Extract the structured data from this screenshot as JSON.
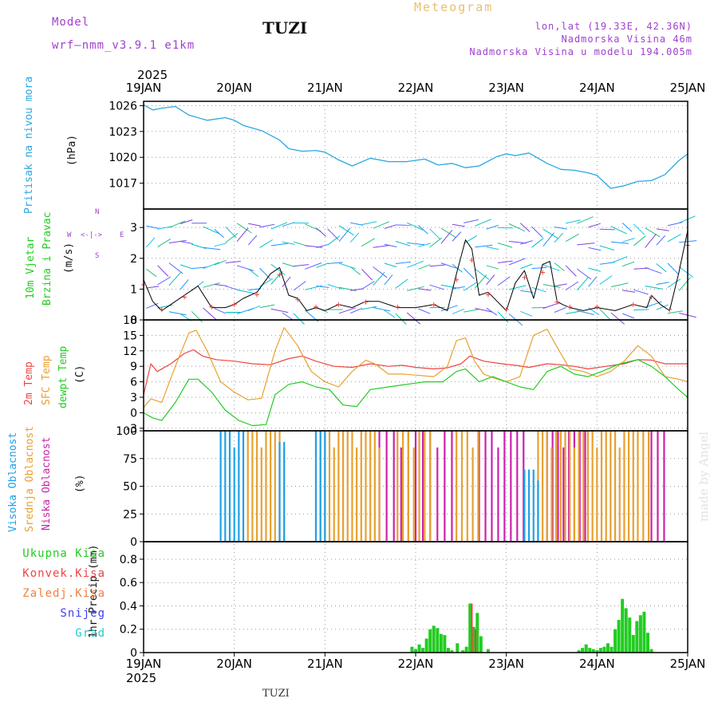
{
  "header": {
    "model_label": "Model",
    "model_name": "wrf—nmm_v3.9.1  e1km",
    "station": "TUZI",
    "title": "Meteogram",
    "coords": "lon,lat (19.33E, 42.36N)",
    "elevation": "Nadmorska Visina 46m",
    "model_elevation": "Nadmorska Visina u modelu 194.005m"
  },
  "footer": {
    "station": "TUZI",
    "credit": "made by Angel"
  },
  "colors": {
    "pressure": "#2aa8e0",
    "t2m": "#ee4444",
    "sfc": "#e8a030",
    "dewpt": "#22cc22",
    "high_cloud": "#1fa0e8",
    "mid_cloud": "#e8a030",
    "low_cloud": "#cc22aa",
    "precip_total": "#22cc22",
    "precip_conv": "#ee4444",
    "wind_speed": "#000000",
    "wind_marker": "#ee4444",
    "header_purple": "#a040d0",
    "title_gold": "#e8c070"
  },
  "panels_labels": {
    "pressure": {
      "name": "Pritisak na nivou mora",
      "unit": "(hPa)"
    },
    "wind": {
      "name1": "10m Vjetar",
      "name2": "Brzina i Pravac",
      "unit": "(m/s)",
      "compass_n": "N",
      "compass_s": "S",
      "compass_e": "E",
      "compass_w": "W",
      "compass_arrows": "<-|->"
    },
    "temp": {
      "name1": "2m Temp",
      "name2": "SFC Temp",
      "name3": "dewpt Temp",
      "unit": "(C)"
    },
    "cloud": {
      "name1": "Visoka Oblacnost",
      "name2": "Srednja Oblacnost",
      "name3": "Niska  Oblacnost",
      "unit": "(%)"
    },
    "precip": {
      "unit_label": "1hr Precip (mm)",
      "legend": [
        "Ukupna Kisa",
        "Konvek.Kisa",
        "Zaledj.Kisa",
        "Snijeg",
        "Grad"
      ],
      "legend_colors": [
        "#22cc22",
        "#ee4444",
        "#f08040",
        "#4040ee",
        "#22cccc"
      ]
    }
  },
  "chart_data": {
    "type": "line",
    "time_axis": {
      "year": "2025",
      "tick_labels": [
        "19JAN",
        "20JAN",
        "21JAN",
        "22JAN",
        "23JAN",
        "24JAN",
        "25JAN"
      ],
      "range_days": [
        0,
        6
      ]
    },
    "pressure": {
      "ylabel": "(hPa)",
      "ylim": [
        1014,
        1026.5
      ],
      "yticks": [
        1017,
        1020,
        1023,
        1026
      ],
      "t": [
        0,
        0.1,
        0.2,
        0.35,
        0.5,
        0.7,
        0.9,
        1.0,
        1.1,
        1.3,
        1.5,
        1.6,
        1.75,
        1.9,
        2.0,
        2.15,
        2.3,
        2.5,
        2.7,
        2.9,
        3.1,
        3.25,
        3.4,
        3.55,
        3.7,
        3.9,
        4.0,
        4.1,
        4.25,
        4.35,
        4.45,
        4.6,
        4.75,
        4.9,
        5.0,
        5.15,
        5.3,
        5.45,
        5.6,
        5.75,
        5.9,
        6.0
      ],
      "values": [
        1026.1,
        1025.5,
        1025.7,
        1025.9,
        1024.9,
        1024.3,
        1024.6,
        1024.3,
        1023.7,
        1023.1,
        1022.0,
        1021.0,
        1020.7,
        1020.8,
        1020.6,
        1019.7,
        1019.0,
        1019.9,
        1019.5,
        1019.5,
        1019.8,
        1019.1,
        1019.3,
        1018.8,
        1019.0,
        1020.1,
        1020.4,
        1020.2,
        1020.5,
        1019.9,
        1019.3,
        1018.6,
        1018.5,
        1018.2,
        1017.9,
        1016.4,
        1016.7,
        1017.2,
        1017.3,
        1018.0,
        1019.6,
        1020.4
      ]
    },
    "wind": {
      "ylabel": "(m/s)",
      "ylim": [
        0,
        3.6
      ],
      "yticks": [
        0,
        1,
        2,
        3
      ],
      "t": [
        0,
        0.1,
        0.2,
        0.3,
        0.45,
        0.6,
        0.75,
        0.9,
        1.0,
        1.1,
        1.25,
        1.4,
        1.5,
        1.6,
        1.7,
        1.8,
        1.9,
        2.0,
        2.15,
        2.3,
        2.45,
        2.6,
        2.8,
        3.0,
        3.2,
        3.35,
        3.45,
        3.55,
        3.62,
        3.7,
        3.8,
        3.9,
        4.0,
        4.1,
        4.2,
        4.3,
        4.4,
        4.48,
        4.56,
        4.62,
        4.7,
        4.85,
        5.0,
        5.2,
        5.4,
        5.55,
        5.6,
        5.7,
        5.8,
        5.9,
        6.0
      ],
      "speed": [
        1.3,
        0.6,
        0.3,
        0.5,
        0.8,
        1.1,
        0.4,
        0.4,
        0.5,
        0.7,
        0.9,
        1.5,
        1.7,
        0.8,
        0.7,
        0.3,
        0.4,
        0.3,
        0.5,
        0.4,
        0.6,
        0.6,
        0.4,
        0.4,
        0.5,
        0.3,
        1.5,
        2.6,
        2.3,
        0.8,
        0.9,
        0.6,
        0.3,
        1.2,
        1.6,
        0.7,
        1.8,
        1.9,
        0.6,
        0.5,
        0.4,
        0.3,
        0.4,
        0.3,
        0.5,
        0.4,
        0.8,
        0.5,
        0.3,
        1.5,
        2.9
      ]
    },
    "temperature": {
      "ylabel": "(C)",
      "ylim": [
        -3.5,
        18
      ],
      "yticks": [
        -3,
        0,
        3,
        6,
        9,
        12,
        15,
        18
      ],
      "series": [
        {
          "name": "2m Temp",
          "t": [
            0,
            0.08,
            0.15,
            0.3,
            0.45,
            0.55,
            0.65,
            0.8,
            1.0,
            1.2,
            1.4,
            1.6,
            1.75,
            1.9,
            2.1,
            2.3,
            2.5,
            2.7,
            2.85,
            3.0,
            3.2,
            3.35,
            3.5,
            3.6,
            3.75,
            3.95,
            4.1,
            4.25,
            4.45,
            4.6,
            4.75,
            4.9,
            5.1,
            5.3,
            5.45,
            5.6,
            5.75,
            5.9,
            6.0
          ],
          "values": [
            3.5,
            9.5,
            8.0,
            9.5,
            11.5,
            12.2,
            11.0,
            10.3,
            10.0,
            9.5,
            9.3,
            10.5,
            11.0,
            10.0,
            9.0,
            8.8,
            9.5,
            9.0,
            9.2,
            8.8,
            8.5,
            8.7,
            9.5,
            11.0,
            10.0,
            9.5,
            9.2,
            8.8,
            9.5,
            9.3,
            9.0,
            8.5,
            9.0,
            9.5,
            10.3,
            10.2,
            9.5,
            9.5,
            9.5
          ]
        },
        {
          "name": "SFC Temp",
          "t": [
            0,
            0.08,
            0.2,
            0.35,
            0.5,
            0.58,
            0.7,
            0.85,
            1.0,
            1.15,
            1.3,
            1.45,
            1.55,
            1.7,
            1.85,
            2.0,
            2.15,
            2.3,
            2.45,
            2.55,
            2.7,
            2.85,
            3.0,
            3.2,
            3.35,
            3.45,
            3.55,
            3.65,
            3.75,
            3.9,
            4.0,
            4.15,
            4.3,
            4.45,
            4.55,
            4.7,
            4.85,
            5.0,
            5.15,
            5.3,
            5.45,
            5.6,
            5.75,
            5.9,
            6.0
          ],
          "values": [
            1.0,
            2.7,
            2.0,
            9.0,
            15.5,
            16.0,
            12.0,
            6.0,
            4.0,
            2.5,
            2.8,
            12.0,
            16.5,
            13.0,
            8.0,
            6.0,
            5.0,
            8.0,
            10.2,
            9.5,
            7.5,
            7.5,
            7.3,
            7.0,
            9.0,
            14.0,
            14.5,
            10.0,
            7.5,
            6.5,
            6.0,
            7.0,
            15.0,
            16.2,
            13.0,
            8.5,
            8.0,
            7.0,
            8.0,
            10.0,
            13.0,
            11.0,
            7.0,
            6.5,
            6.0
          ]
        },
        {
          "name": "dewpt Temp",
          "t": [
            0,
            0.1,
            0.2,
            0.35,
            0.5,
            0.6,
            0.75,
            0.9,
            1.05,
            1.2,
            1.35,
            1.45,
            1.6,
            1.75,
            1.9,
            2.05,
            2.2,
            2.35,
            2.5,
            2.7,
            2.9,
            3.1,
            3.3,
            3.45,
            3.55,
            3.7,
            3.85,
            4.0,
            4.15,
            4.3,
            4.45,
            4.6,
            4.75,
            4.9,
            5.05,
            5.25,
            5.45,
            5.6,
            5.75,
            5.9,
            6.0
          ],
          "values": [
            0.0,
            -1.0,
            -1.5,
            2.0,
            6.5,
            6.5,
            4.0,
            0.5,
            -1.5,
            -2.5,
            -2.3,
            3.5,
            5.5,
            6.0,
            5.0,
            4.5,
            1.5,
            1.2,
            4.5,
            5.0,
            5.5,
            6.0,
            6.0,
            8.0,
            8.5,
            6.0,
            7.0,
            6.0,
            5.0,
            4.5,
            8.0,
            9.0,
            7.5,
            7.0,
            8.0,
            9.5,
            10.3,
            9.0,
            7.0,
            4.5,
            3.0
          ]
        }
      ]
    },
    "cloud": {
      "ylabel": "(%)",
      "ylim": [
        0,
        100
      ],
      "yticks": [
        0,
        25,
        50,
        75,
        100
      ],
      "high": [
        [
          0.85,
          1.15,
          100,
          0.05
        ],
        [
          1.5,
          1.55,
          90,
          0.05
        ],
        [
          1.9,
          2.0,
          100,
          0.05
        ],
        [
          4.2,
          4.35,
          65,
          0.05
        ]
      ],
      "mid": [
        [
          1.15,
          1.6,
          100,
          0.05
        ],
        [
          1.95,
          2.6,
          100,
          0.05
        ],
        [
          2.8,
          3.2,
          100,
          0.06
        ],
        [
          3.45,
          3.7,
          100,
          0.06
        ],
        [
          4.35,
          5.4,
          100,
          0.05
        ],
        [
          5.45,
          5.6,
          100,
          0.06
        ]
      ],
      "low": [
        [
          2.6,
          3.45,
          100,
          0.08
        ],
        [
          3.7,
          4.2,
          100,
          0.07
        ],
        [
          4.45,
          4.9,
          100,
          0.06
        ],
        [
          5.6,
          5.75,
          100,
          0.07
        ]
      ]
    },
    "precip": {
      "ylabel": "1hr Precip (mm)",
      "ylim": [
        0,
        0.95
      ],
      "yticks": [
        0,
        0.2,
        0.4,
        0.6,
        0.8
      ],
      "t": [
        2.96,
        3.0,
        3.04,
        3.08,
        3.12,
        3.16,
        3.2,
        3.24,
        3.28,
        3.32,
        3.36,
        3.4,
        3.46,
        3.52,
        3.56,
        3.6,
        3.64,
        3.68,
        3.72,
        3.8,
        4.8,
        4.84,
        4.88,
        4.92,
        4.96,
        5.0,
        5.04,
        5.08,
        5.12,
        5.16,
        5.2,
        5.24,
        5.28,
        5.32,
        5.36,
        5.4,
        5.44,
        5.48,
        5.52,
        5.56,
        5.6
      ],
      "values": [
        0.05,
        0.03,
        0.07,
        0.04,
        0.12,
        0.2,
        0.23,
        0.21,
        0.16,
        0.15,
        0.04,
        0.02,
        0.08,
        0.02,
        0.05,
        0.42,
        0.22,
        0.34,
        0.14,
        0.03,
        0.02,
        0.04,
        0.07,
        0.04,
        0.03,
        0.02,
        0.04,
        0.05,
        0.08,
        0.05,
        0.2,
        0.28,
        0.46,
        0.38,
        0.3,
        0.15,
        0.27,
        0.32,
        0.35,
        0.17,
        0.03
      ],
      "convective": {
        "t": [
          3.62,
          3.66
        ],
        "values": [
          0.42,
          0.2
        ]
      }
    }
  }
}
